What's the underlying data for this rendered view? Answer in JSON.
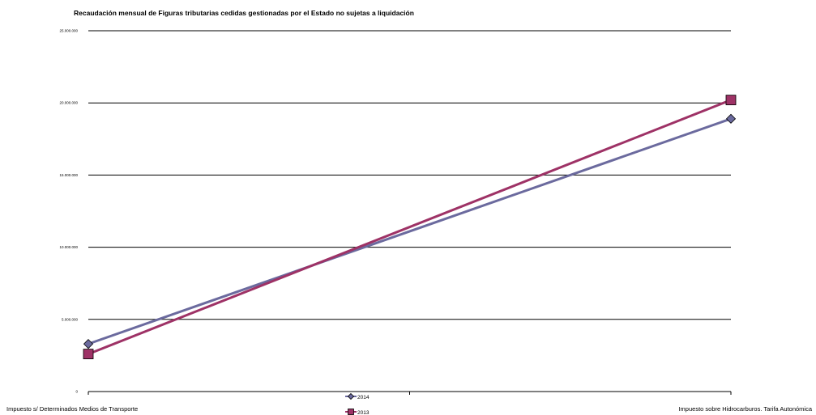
{
  "chart_data": {
    "type": "line",
    "title": "Recaudación mensual de  Figuras tributarias cedidas gestionadas por el Estado no sujetas a liquidación",
    "categories": [
      "Impuesto s/ Determinados Medios de Transporte",
      "Impuesto sobre Hidrocarburos. Tarifa Autonómica"
    ],
    "ylim": [
      0,
      25000000
    ],
    "yticks": [
      {
        "value": 0,
        "label": "0"
      },
      {
        "value": 5000000,
        "label": "5.000.000"
      },
      {
        "value": 10000000,
        "label": "10.000.000"
      },
      {
        "value": 15000000,
        "label": "15.000.000"
      },
      {
        "value": 20000000,
        "label": "20.000.000"
      },
      {
        "value": 25000000,
        "label": "25.000.000"
      }
    ],
    "grid": true,
    "legend_position": "bottom-center",
    "series": [
      {
        "name": "2014",
        "values": [
          3300000,
          18900000
        ],
        "color": "#6b6a9e",
        "marker": "diamond"
      },
      {
        "name": "2013",
        "values": [
          2600000,
          20200000
        ],
        "color": "#9e3266",
        "marker": "square"
      }
    ]
  }
}
